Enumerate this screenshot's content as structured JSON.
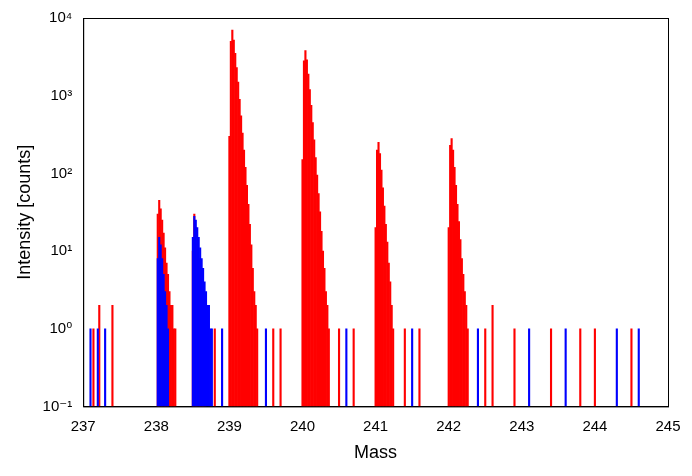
{
  "chart_data": {
    "type": "bar",
    "x_label": "Mass",
    "y_label": "Intensity [counts]",
    "log": "y",
    "grid": false,
    "xlim": [
      237,
      245
    ],
    "xticks": [
      237,
      238,
      239,
      240,
      241,
      242,
      243,
      244,
      245
    ],
    "ylim": [
      0.1,
      10000
    ],
    "yticks": [
      {
        "value": 0.1,
        "label": "10⁻¹"
      },
      {
        "value": 1,
        "label": "10⁰"
      },
      {
        "value": 10,
        "label": "10¹"
      },
      {
        "value": 100,
        "label": "10²"
      },
      {
        "value": 1000,
        "label": "10³"
      },
      {
        "value": 10000,
        "label": "10⁴"
      }
    ],
    "series": [
      {
        "color": "#0000ff",
        "x": [
          237.1,
          237.2,
          237.3,
          238.02,
          238.04,
          238.06,
          238.08,
          238.1,
          238.12,
          238.14,
          238.16,
          238.5,
          238.52,
          238.54,
          238.56,
          238.58,
          238.6,
          238.62,
          238.64,
          238.66,
          238.68,
          238.7,
          238.72,
          238.74,
          238.76,
          238.9,
          239.5,
          240.6,
          241.5,
          242.4,
          243.1,
          243.6,
          244.3,
          244.6
        ],
        "values": [
          1,
          1,
          1,
          8,
          15,
          12,
          8,
          5,
          3,
          2,
          1,
          15,
          28,
          25,
          20,
          15,
          11,
          8,
          6,
          4,
          3,
          2,
          2,
          1,
          1,
          1,
          1,
          1,
          1,
          1,
          1,
          1,
          1,
          1
        ]
      },
      {
        "color": "#ff0000",
        "x": [
          237.14,
          237.22,
          237.4,
          238.02,
          238.04,
          238.06,
          238.08,
          238.1,
          238.12,
          238.14,
          238.16,
          238.18,
          238.2,
          238.22,
          238.24,
          238.26,
          238.5,
          238.52,
          238.54,
          238.56,
          238.58,
          238.6,
          238.62,
          238.64,
          238.66,
          238.8,
          239.0,
          239.02,
          239.04,
          239.06,
          239.08,
          239.1,
          239.12,
          239.14,
          239.16,
          239.18,
          239.2,
          239.22,
          239.24,
          239.26,
          239.28,
          239.3,
          239.32,
          239.34,
          239.36,
          239.38,
          239.6,
          239.7,
          240.0,
          240.02,
          240.04,
          240.06,
          240.08,
          240.1,
          240.12,
          240.14,
          240.16,
          240.18,
          240.2,
          240.22,
          240.24,
          240.26,
          240.28,
          240.3,
          240.32,
          240.34,
          240.36,
          240.5,
          240.7,
          241.0,
          241.02,
          241.04,
          241.06,
          241.08,
          241.1,
          241.12,
          241.14,
          241.16,
          241.18,
          241.2,
          241.22,
          241.24,
          241.4,
          241.6,
          242.0,
          242.02,
          242.04,
          242.06,
          242.08,
          242.1,
          242.12,
          242.14,
          242.16,
          242.18,
          242.2,
          242.22,
          242.24,
          242.26,
          242.5,
          242.6,
          242.9,
          243.4,
          243.8,
          244.0,
          244.5
        ],
        "values": [
          1,
          2,
          2,
          30,
          45,
          35,
          25,
          17,
          11,
          7,
          5,
          3,
          2,
          2,
          1,
          1,
          10,
          30,
          20,
          12,
          8,
          5,
          3,
          2,
          1,
          1,
          300,
          5000,
          7000,
          5200,
          3500,
          2300,
          1500,
          900,
          550,
          330,
          200,
          120,
          70,
          40,
          22,
          12,
          6,
          3,
          2,
          1,
          1,
          1,
          150,
          2800,
          3800,
          2900,
          1900,
          1200,
          750,
          450,
          270,
          160,
          95,
          55,
          32,
          18,
          10,
          6,
          3,
          2,
          1,
          1,
          1,
          20,
          200,
          250,
          180,
          110,
          65,
          38,
          22,
          13,
          7,
          4,
          2,
          1,
          1,
          1,
          20,
          230,
          280,
          200,
          120,
          70,
          40,
          24,
          14,
          8,
          5,
          3,
          2,
          1,
          1,
          2,
          1,
          1,
          1,
          1,
          1
        ]
      }
    ]
  }
}
